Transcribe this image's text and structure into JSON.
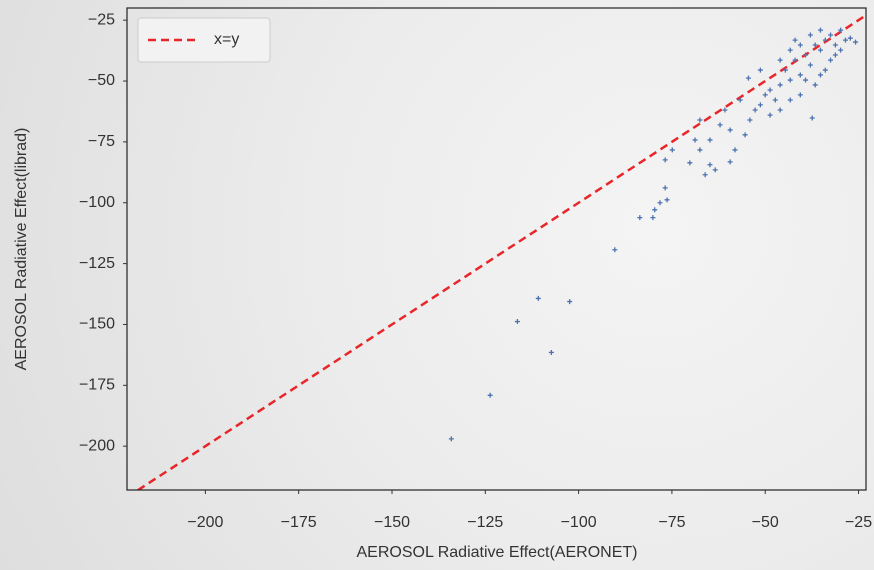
{
  "chart_data": {
    "type": "scatter",
    "xlabel": "AEROSOL Radiative Effect(AERONET)",
    "ylabel": "AEROSOL Radiative Effect(librad)",
    "xlim": [
      -221,
      -23
    ],
    "ylim": [
      -218,
      -20
    ],
    "xticks": [
      {
        "value": -200,
        "label": "−200"
      },
      {
        "value": -175,
        "label": "−175"
      },
      {
        "value": -150,
        "label": "−150"
      },
      {
        "value": -125,
        "label": "−125"
      },
      {
        "value": -100,
        "label": "−100"
      },
      {
        "value": -75,
        "label": "−75"
      },
      {
        "value": -50,
        "label": "−50"
      },
      {
        "value": -25,
        "label": "−25"
      }
    ],
    "yticks": [
      {
        "value": -25,
        "label": "−25"
      },
      {
        "value": -50,
        "label": "−50"
      },
      {
        "value": -75,
        "label": "−75"
      },
      {
        "value": -100,
        "label": "−100"
      },
      {
        "value": -125,
        "label": "−125"
      },
      {
        "value": -150,
        "label": "−150"
      },
      {
        "value": -175,
        "label": "−175"
      },
      {
        "value": -200,
        "label": "−200"
      }
    ],
    "grid": false,
    "reference_line": {
      "label": "x=y",
      "color": "#e8262a"
    },
    "legend": "upper left",
    "color": "#4c72b0",
    "x": [
      -134.1,
      -123.7,
      -116.4,
      -110.8,
      -107.3,
      -102.4,
      -90.3,
      -83.6,
      -80.1,
      -79.6,
      -78.2,
      -76.3,
      -76.8,
      -70.2,
      -76.8,
      -74.9,
      -67.5,
      -66.1,
      -64.8,
      -63.4,
      -59.4,
      -68.8,
      -64.8,
      -62.1,
      -58.1,
      -55.4,
      -54.1,
      -52.7,
      -51.3,
      -50.0,
      -48.7,
      -47.3,
      -46.0,
      -44.6,
      -43.3,
      -42.0,
      -40.6,
      -39.2,
      -37.9,
      -36.6,
      -35.2,
      -33.9,
      -32.5,
      -31.2,
      -29.8,
      -28.5,
      -27.2,
      -37.4,
      -51.3,
      -54.5,
      -56.7,
      -60.8,
      -67.5,
      -59.4,
      -48.7,
      -43.3,
      -40.6,
      -39.2,
      -36.6,
      -33.9,
      -32.5,
      -31.2,
      -29.8,
      -35.2,
      -37.9,
      -40.6,
      -43.3,
      -46.0,
      -25.8,
      -42.0,
      -35.2,
      -46.0
    ],
    "y": [
      -197.0,
      -179.1,
      -148.8,
      -139.3,
      -161.5,
      -140.6,
      -119.3,
      -106.1,
      -106.1,
      -102.9,
      -100.0,
      -98.8,
      -93.9,
      -83.6,
      -82.4,
      -78.3,
      -78.3,
      -88.5,
      -84.4,
      -86.5,
      -83.2,
      -74.2,
      -74.2,
      -68.0,
      -78.3,
      -72.1,
      -66.0,
      -61.9,
      -59.8,
      -55.7,
      -53.7,
      -57.8,
      -51.6,
      -45.5,
      -49.6,
      -41.4,
      -47.5,
      -39.3,
      -43.4,
      -35.2,
      -37.3,
      -33.2,
      -31.1,
      -35.2,
      -29.1,
      -33.2,
      -32.4,
      -65.2,
      -45.5,
      -48.8,
      -57.8,
      -61.9,
      -66.0,
      -70.1,
      -64.0,
      -57.8,
      -55.7,
      -49.6,
      -51.6,
      -45.5,
      -41.4,
      -39.3,
      -37.3,
      -29.1,
      -31.1,
      -35.2,
      -37.3,
      -41.4,
      -34.0,
      -33.2,
      -47.5,
      -61.9
    ]
  }
}
